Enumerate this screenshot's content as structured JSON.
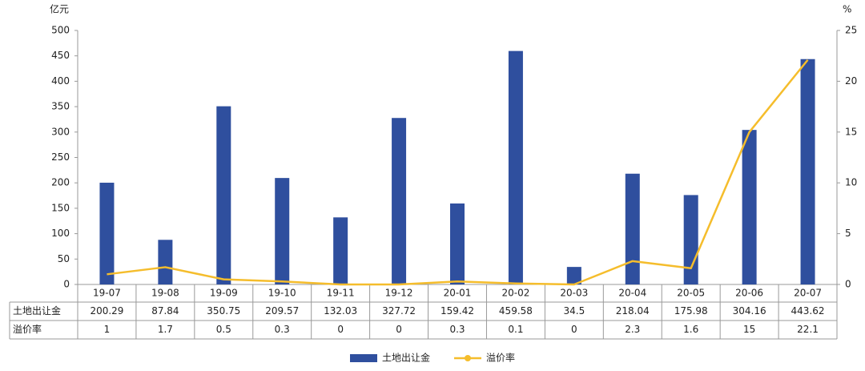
{
  "chart_data": {
    "type": "bar_line",
    "y_unit": "亿元",
    "y2_unit": "%",
    "categories": [
      "19-07",
      "19-08",
      "19-09",
      "19-10",
      "19-11",
      "19-12",
      "20-01",
      "20-02",
      "20-03",
      "20-04",
      "20-05",
      "20-06",
      "20-07"
    ],
    "series": [
      {
        "name": "土地出让金",
        "type": "bar",
        "color": "#2f4f9e",
        "values": [
          200.29,
          87.84,
          350.75,
          209.57,
          132.03,
          327.72,
          159.42,
          459.58,
          34.5,
          218.04,
          175.98,
          304.16,
          443.62
        ]
      },
      {
        "name": "溢价率",
        "type": "line",
        "axis": "y2",
        "color": "#f5bd2c",
        "values": [
          1,
          1.7,
          0.5,
          0.3,
          0,
          0,
          0.3,
          0.1,
          0,
          2.3,
          1.6,
          15,
          22.1
        ]
      }
    ],
    "ylim": [
      0,
      500
    ],
    "yticks": [
      0,
      50,
      100,
      150,
      200,
      250,
      300,
      350,
      400,
      450,
      500
    ],
    "y2lim": [
      0,
      25
    ],
    "y2ticks": [
      0,
      5,
      10,
      15,
      20,
      25
    ],
    "grid": false,
    "legend": "bottom"
  }
}
